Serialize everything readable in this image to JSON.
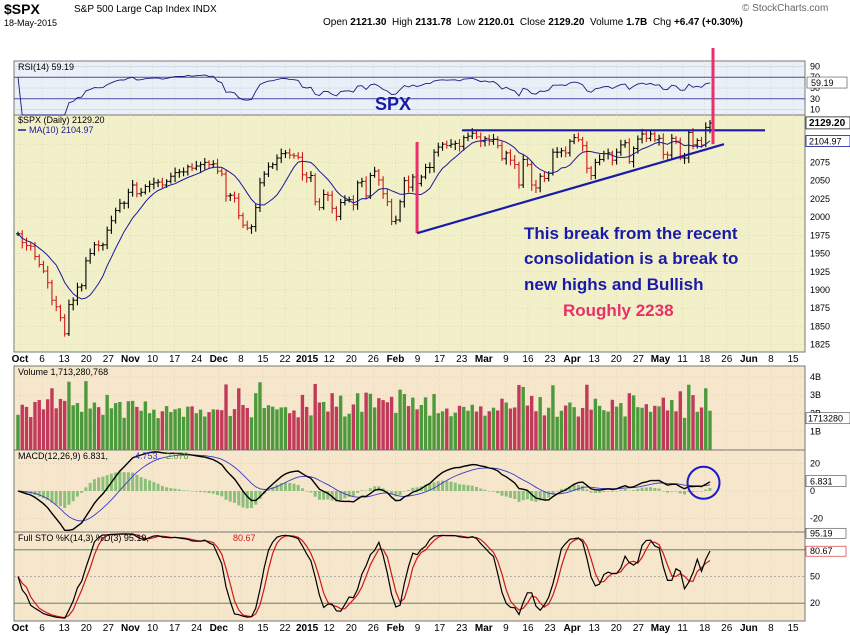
{
  "header": {
    "symbol": "$SPX",
    "name": "S&P 500 Large Cap Index  INDX",
    "date": "18-May-2015",
    "open_label": "Open",
    "open": "2121.30",
    "high_label": "High",
    "high": "2131.78",
    "low_label": "Low",
    "low": "2120.01",
    "close_label": "Close",
    "close": "2129.20",
    "volume_label": "Volume",
    "volume": "1.7B",
    "chg_label": "Chg",
    "chg": "+6.47 (+0.30%)",
    "logo": "© StockCharts.com"
  },
  "colors": {
    "price_bg": "#f1f0c8",
    "lower_bg": "#f5e6cc",
    "rsi_bg": "#eaf0f7",
    "up": "#000000",
    "down": "#d01818",
    "vol_up": "#4d9a3c",
    "vol_down": "#c23a5a",
    "ma": "#1a1aa0",
    "annot_blue": "#1a1aaa",
    "annot_pink": "#e8306a"
  },
  "chart_data": {
    "type": "line",
    "title": "$SPX S&P 500 Large Cap Index INDX (Daily)",
    "x_axis_labels": [
      "Oct",
      "6",
      "13",
      "20",
      "27",
      "Nov",
      "10",
      "17",
      "24",
      "Dec",
      "8",
      "15",
      "22",
      "2015",
      "12",
      "20",
      "26",
      "Feb",
      "9",
      "17",
      "23",
      "Mar",
      "9",
      "16",
      "23",
      "Apr",
      "13",
      "20",
      "27",
      "May",
      "11",
      "18",
      "26",
      "Jun",
      "8",
      "15"
    ],
    "price": {
      "legend_label": "$SPX (Daily) 2129.20",
      "ma_label": "MA(10) 2104.97",
      "last_close": "2129.20",
      "last_ma": "2104.97",
      "y_ticks": [
        1825,
        1850,
        1875,
        1900,
        1925,
        1950,
        1975,
        2000,
        2025,
        2050,
        2075,
        2100
      ],
      "ylim": [
        1815,
        2140
      ],
      "close_series": [
        1977,
        1965,
        1961,
        1960,
        1946,
        1935,
        1926,
        1910,
        1886,
        1877,
        1862,
        1840,
        1880,
        1886,
        1904,
        1906,
        1940,
        1950,
        1962,
        1961,
        1962,
        1982,
        1995,
        2009,
        2019,
        2019,
        2034,
        2044,
        2032,
        2034,
        2042,
        2045,
        2047,
        2048,
        2044,
        2049,
        2056,
        2061,
        2062,
        2062,
        2069,
        2067,
        2070,
        2072,
        2075,
        2072,
        2073,
        2063,
        2059,
        2029,
        2030,
        2026,
        2002,
        1989,
        1985,
        1987,
        2013,
        2047,
        2059,
        2069,
        2072,
        2081,
        2087,
        2088,
        2085,
        2084,
        2082,
        2058,
        2054,
        2057,
        2021,
        2013,
        2031,
        2030,
        2012,
        2001,
        2020,
        2023,
        2024,
        2017,
        2047,
        2049,
        2029,
        2057,
        2063,
        2051,
        2032,
        2021,
        1994,
        1996,
        2021,
        2050,
        2041,
        2055,
        2046,
        2055,
        2068,
        2068,
        2089,
        2096,
        2100,
        2098,
        2100,
        2101,
        2097,
        2109,
        2111,
        2115,
        2110,
        2104,
        2108,
        2104,
        2107,
        2098,
        2080,
        2088,
        2078,
        2072,
        2044,
        2079,
        2072,
        2044,
        2040,
        2056,
        2053,
        2060,
        2089,
        2089,
        2091,
        2088,
        2104,
        2109,
        2106,
        2098,
        2067,
        2057,
        2075,
        2079,
        2087,
        2088,
        2078,
        2089,
        2099,
        2102,
        2076,
        2094,
        2107,
        2114,
        2108,
        2114,
        2106,
        2108,
        2086,
        2085,
        2108,
        2104,
        2081,
        2081,
        2116,
        2099,
        2105,
        2099,
        2123,
        2129
      ]
    },
    "rsi": {
      "label": "RSI(14) 59.19",
      "last": "59.19",
      "y_ticks": [
        10,
        30,
        50,
        70,
        90
      ],
      "ylim": [
        0,
        100
      ]
    },
    "volume": {
      "label": "Volume 1,713,280,768",
      "last": "1713280",
      "y_ticks": [
        "1B",
        "2B",
        "3B",
        "4B"
      ],
      "ylim": [
        0,
        4.6
      ]
    },
    "macd": {
      "label_main": "MACD(12,26,9) 6.831,",
      "label_signal": "4.753,",
      "label_hist": "2.078",
      "last": "6.831",
      "y_ticks": [
        -20,
        0,
        20
      ],
      "ylim": [
        -30,
        30
      ]
    },
    "sto": {
      "label_k": "Full STO %K(14,3) %D(3) 95.19,",
      "label_d": "80.67",
      "last_k": "95.19",
      "last_d": "80.67",
      "y_ticks": [
        20,
        50,
        80
      ],
      "ylim": [
        0,
        100
      ]
    }
  },
  "annotations": {
    "spx": "SPX",
    "text_line1": "This break from the recent",
    "text_line2": "consolidation is a break to",
    "text_line3": "new highs and Bullish",
    "target": "Roughly 2238"
  }
}
